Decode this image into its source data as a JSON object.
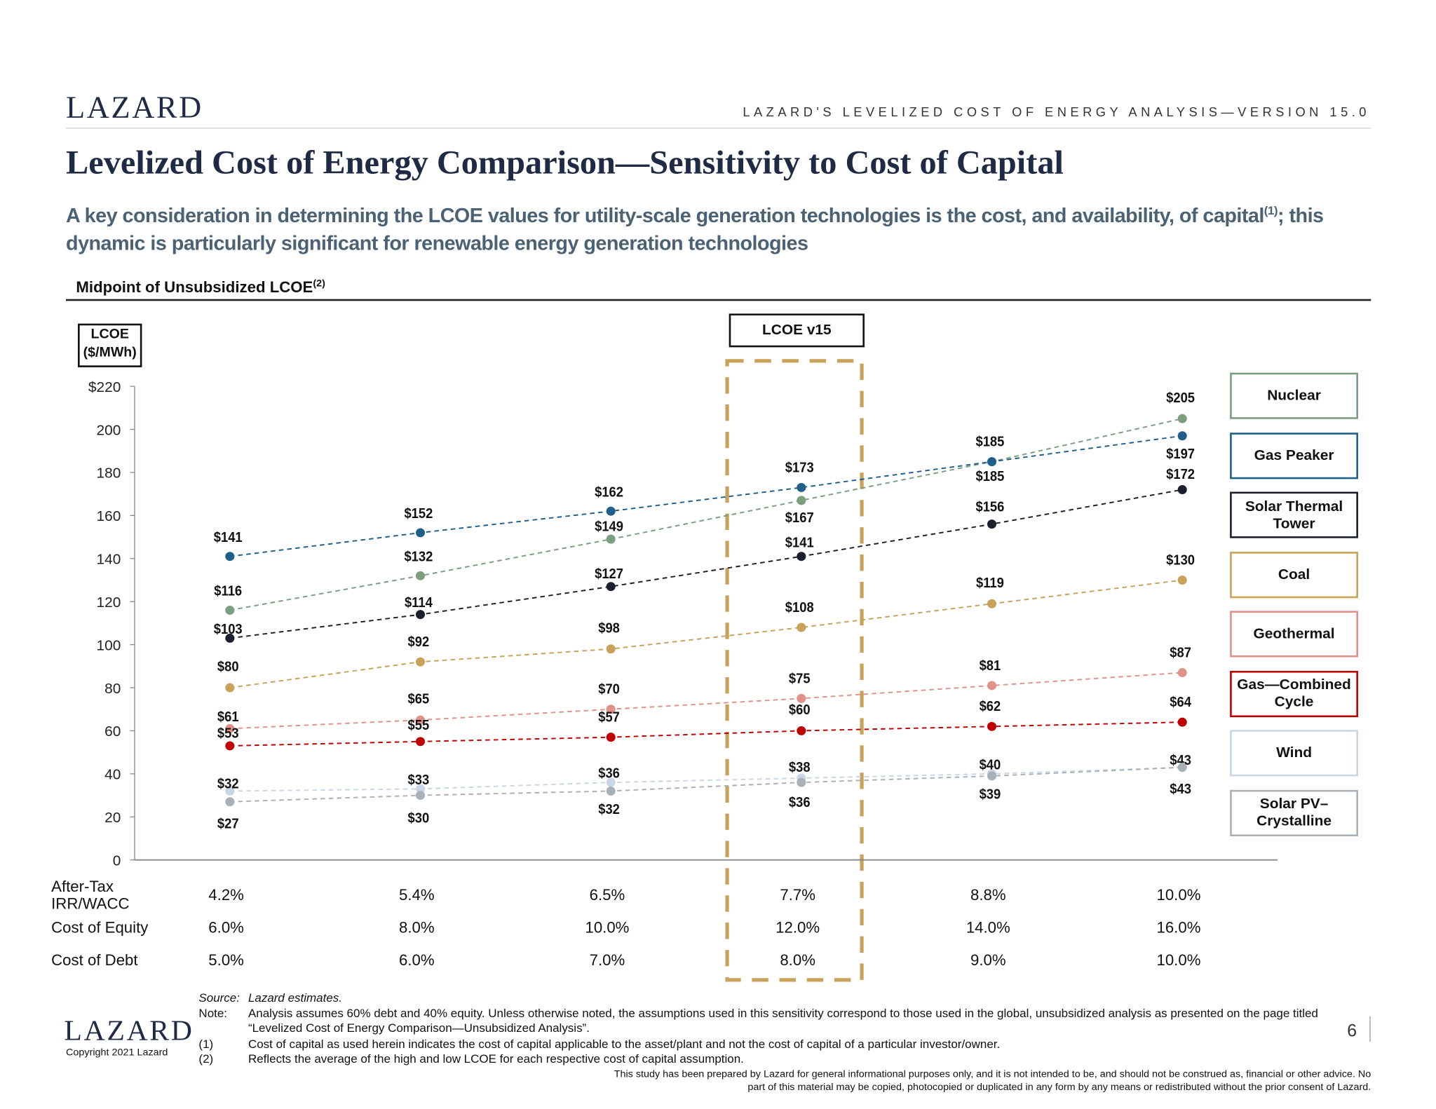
{
  "header": {
    "logo": "LAZARD",
    "running_title": "LAZARD'S LEVELIZED COST OF ENERGY ANALYSIS—VERSION 15.0",
    "title": "Levelized Cost of Energy Comparison—Sensitivity to Cost of Capital",
    "subtitle": "A key consideration in determining the LCOE values for utility-scale generation technologies is the cost, and availability, of capital",
    "subtitle_note": "(1)",
    "subtitle_end": "; this dynamic is particularly significant for renewable energy generation technologies"
  },
  "chart_data": {
    "type": "line",
    "title": "Midpoint of Unsubsidized LCOE",
    "title_note": "(2)",
    "y_label": "LCOE ($/MWh)",
    "highlight_label": "LCOE v15",
    "highlight_index": 3,
    "x_label": "After-Tax IRR/WACC",
    "categories": [
      "4.2%",
      "5.4%",
      "6.5%",
      "7.7%",
      "8.8%",
      "10.0%"
    ],
    "table": [
      {
        "label": "Cost of Equity",
        "values": [
          "6.0%",
          "8.0%",
          "10.0%",
          "12.0%",
          "14.0%",
          "16.0%"
        ]
      },
      {
        "label": "Cost of Debt",
        "values": [
          "5.0%",
          "6.0%",
          "7.0%",
          "8.0%",
          "9.0%",
          "10.0%"
        ]
      }
    ],
    "ylim": [
      0,
      220
    ],
    "yticks": [
      0,
      20,
      40,
      60,
      80,
      100,
      120,
      140,
      160,
      180,
      200,
      {
        "value": 220,
        "label": "$220"
      }
    ],
    "grid": false,
    "legend": "right",
    "series": [
      {
        "name": "Nuclear",
        "color": "#7a9e7e",
        "values": [
          116,
          132,
          149,
          167,
          185,
          205
        ],
        "value_labels": [
          "$116",
          "$132",
          "$149",
          "$167",
          "$185",
          "$205"
        ]
      },
      {
        "name": "Gas Peaker",
        "color": "#1f5f8b",
        "values": [
          141,
          152,
          162,
          173,
          185,
          197
        ],
        "value_labels": [
          "$141",
          "$152",
          "$162",
          "$173",
          "$185",
          "$197"
        ]
      },
      {
        "name": "Solar Thermal Tower",
        "color": "#1c1f2e",
        "values": [
          103,
          114,
          127,
          141,
          156,
          172
        ],
        "value_labels": [
          "$103",
          "$114",
          "$127",
          "$141",
          "$156",
          "$172"
        ]
      },
      {
        "name": "Coal",
        "color": "#c9a25a",
        "values": [
          80,
          92,
          98,
          108,
          119,
          130
        ],
        "value_labels": [
          "$80",
          "$92",
          "$98",
          "$108",
          "$119",
          "$130"
        ]
      },
      {
        "name": "Geothermal",
        "color": "#e0928a",
        "values": [
          61,
          65,
          70,
          75,
          81,
          87
        ],
        "value_labels": [
          "$61",
          "$65",
          "$70",
          "$75",
          "$81",
          "$87"
        ]
      },
      {
        "name": "Gas—Combined Cycle",
        "color": "#c00000",
        "values": [
          53,
          55,
          57,
          60,
          62,
          64
        ],
        "value_labels": [
          "$53",
          "$55",
          "$57",
          "$60",
          "$62",
          "$64"
        ]
      },
      {
        "name": "Wind",
        "color": "#c8d6e5",
        "values": [
          32,
          33,
          36,
          38,
          40,
          43
        ],
        "value_labels": [
          "$32",
          "$33",
          "$36",
          "$38",
          "$40",
          "$43"
        ]
      },
      {
        "name": "Solar PV–Crystalline",
        "color": "#a8b0b8",
        "values": [
          27,
          30,
          32,
          36,
          39,
          43
        ],
        "value_labels": [
          "$27",
          "$30",
          "$32",
          "$36",
          "$39",
          "$43"
        ]
      }
    ]
  },
  "footer": {
    "source_label": "Source:",
    "source": "Lazard estimates.",
    "note_label": "Note:",
    "note": "Analysis assumes 60% debt and 40% equity. Unless otherwise noted, the assumptions used in this sensitivity correspond to those used in the global, unsubsidized analysis as presented on the page titled “Levelized Cost of Energy Comparison—Unsubsidized Analysis”.",
    "notes": [
      {
        "marker": "(1)",
        "text": "Cost of capital as used herein indicates the cost of capital applicable to the asset/plant and not the cost of capital of a particular investor/owner."
      },
      {
        "marker": "(2)",
        "text": "Reflects the average of the high and low LCOE for each respective cost of capital assumption."
      }
    ],
    "disclaimer": "This study has been prepared by Lazard for general informational purposes only, and it is not intended to be, and should not be construed as, financial or other advice. No part of this material may be copied, photocopied or duplicated in any form by any means or redistributed without the prior consent of Lazard.",
    "logo": "LAZARD",
    "copyright": "Copyright 2021 Lazard",
    "page": "6"
  }
}
